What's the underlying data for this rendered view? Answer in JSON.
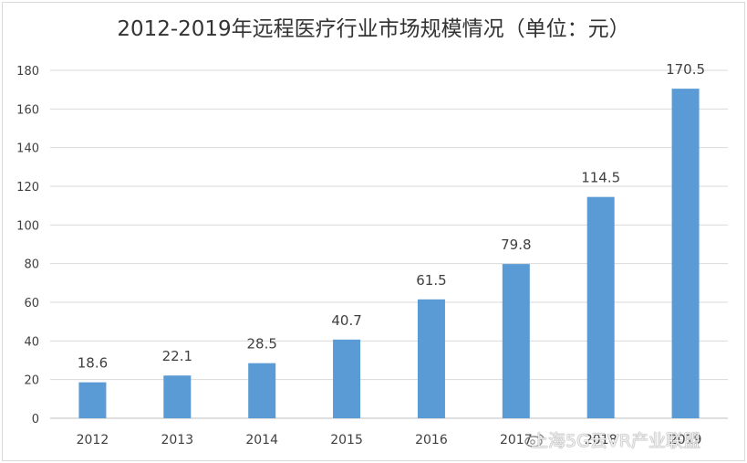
{
  "chart_data": {
    "type": "bar",
    "title": "2012-2019年远程医疗行业市场规模情况（单位：元）",
    "categories": [
      "2012",
      "2013",
      "2014",
      "2015",
      "2016",
      "2017",
      "2018",
      "2019"
    ],
    "values": [
      18.6,
      22.1,
      28.5,
      40.7,
      61.5,
      79.8,
      114.5,
      170.5
    ],
    "data_labels": [
      "18.6",
      "22.1",
      "28.5",
      "40.7",
      "61.5",
      "79.8",
      "114.5",
      "170.5"
    ],
    "yticks": [
      0,
      20,
      40,
      60,
      80,
      100,
      120,
      140,
      160,
      180
    ],
    "ylim": [
      0,
      180
    ],
    "grid": true,
    "legend": "none",
    "bar_color": "#5b9bd5"
  },
  "watermark": "上海5G云VR产业联盟",
  "watermark_icon": "weibo-icon"
}
